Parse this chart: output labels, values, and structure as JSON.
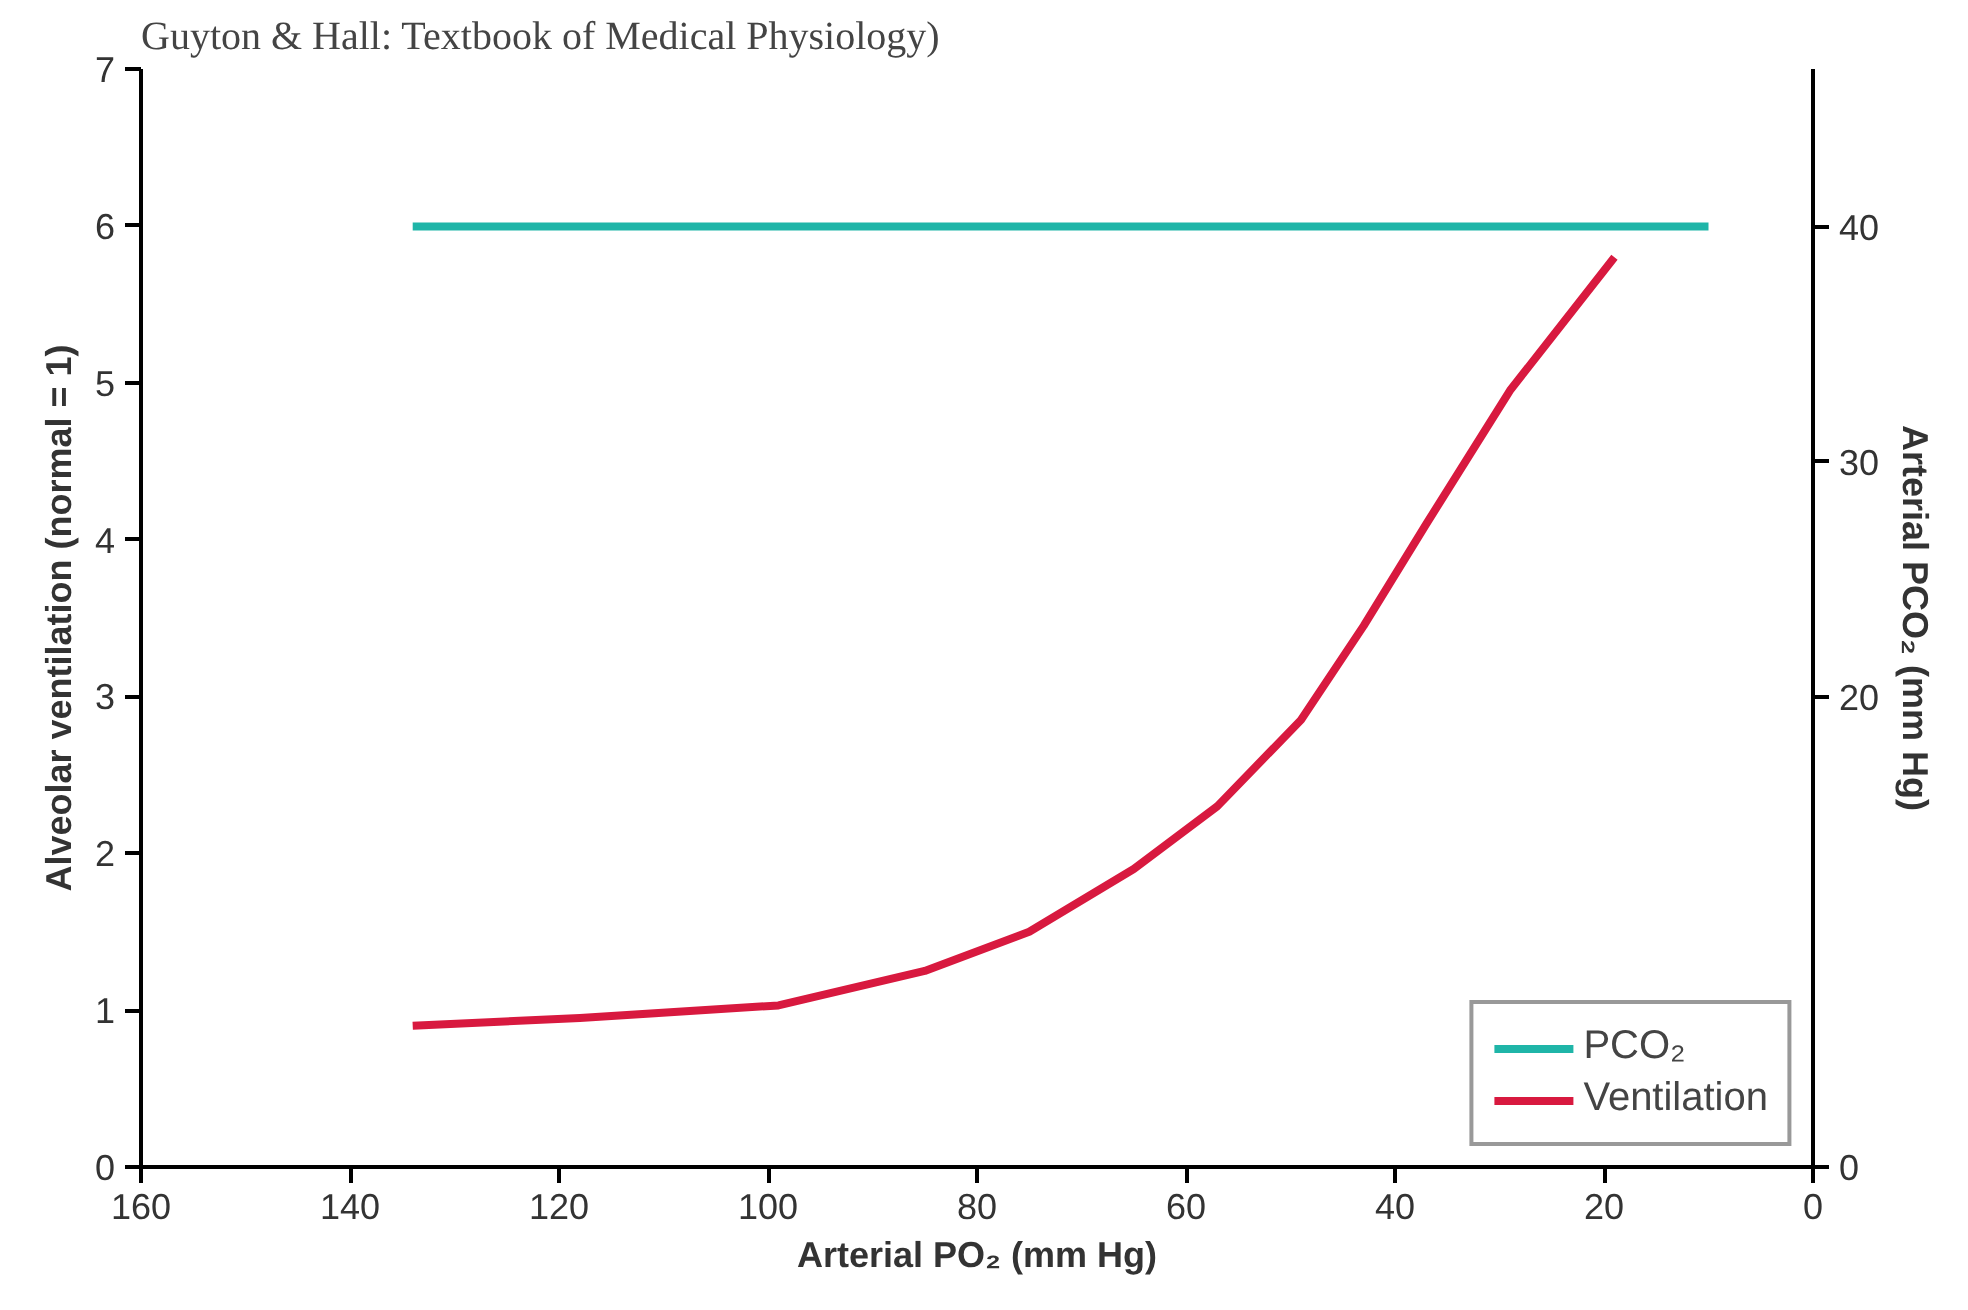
{
  "chart_data": {
    "type": "line",
    "annotations": [
      "Guyton & Hall: Textbook of Medical Physiology)"
    ],
    "xlabel": "Arterial PO₂ (mm Hg)",
    "ylabel": "Alveolar ventilation (normal = 1)",
    "y2label": "Arterial PCO₂ (mm Hg)",
    "xlim": [
      160,
      0
    ],
    "xticks": [
      160,
      140,
      120,
      100,
      80,
      60,
      40,
      20,
      0
    ],
    "ylim": [
      0,
      7
    ],
    "yticks": [
      0,
      1,
      2,
      3,
      4,
      5,
      6,
      7
    ],
    "y2lim": [
      0,
      46.7
    ],
    "y2ticks": [
      0,
      20,
      30,
      40
    ],
    "grid": false,
    "legend": "bottom right",
    "series": [
      {
        "name": "PCO₂",
        "color": "#1fb5a8",
        "axis": "y2",
        "x": [
          134,
          10
        ],
        "values": [
          40,
          40
        ]
      },
      {
        "name": "Ventilation",
        "color": "#d8193f",
        "x": [
          134,
          118,
          99,
          85,
          75,
          65,
          57,
          49,
          43,
          37,
          29,
          19
        ],
        "values": [
          0.9,
          0.95,
          1.03,
          1.25,
          1.5,
          1.9,
          2.3,
          2.85,
          3.45,
          4.1,
          4.95,
          5.8
        ]
      }
    ]
  }
}
